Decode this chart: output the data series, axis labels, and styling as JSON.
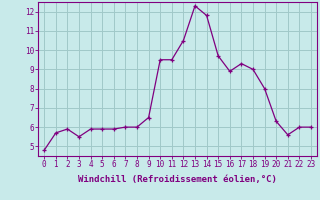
{
  "x": [
    0,
    1,
    2,
    3,
    4,
    5,
    6,
    7,
    8,
    9,
    10,
    11,
    12,
    13,
    14,
    15,
    16,
    17,
    18,
    19,
    20,
    21,
    22,
    23
  ],
  "y": [
    4.8,
    5.7,
    5.9,
    5.5,
    5.9,
    5.9,
    5.9,
    6.0,
    6.0,
    6.5,
    9.5,
    9.5,
    10.5,
    12.3,
    11.8,
    9.7,
    8.9,
    9.3,
    9.0,
    8.0,
    6.3,
    5.6,
    6.0,
    6.0
  ],
  "line_color": "#800080",
  "marker_color": "#800080",
  "bg_color": "#c8eaea",
  "grid_color": "#a0c8c8",
  "axis_color": "#800080",
  "xlabel": "Windchill (Refroidissement éolien,°C)",
  "xlim": [
    -0.5,
    23.5
  ],
  "ylim": [
    4.5,
    12.5
  ],
  "yticks": [
    5,
    6,
    7,
    8,
    9,
    10,
    11,
    12
  ],
  "xticks": [
    0,
    1,
    2,
    3,
    4,
    5,
    6,
    7,
    8,
    9,
    10,
    11,
    12,
    13,
    14,
    15,
    16,
    17,
    18,
    19,
    20,
    21,
    22,
    23
  ],
  "tick_fontsize": 5.5,
  "label_fontsize": 6.5
}
